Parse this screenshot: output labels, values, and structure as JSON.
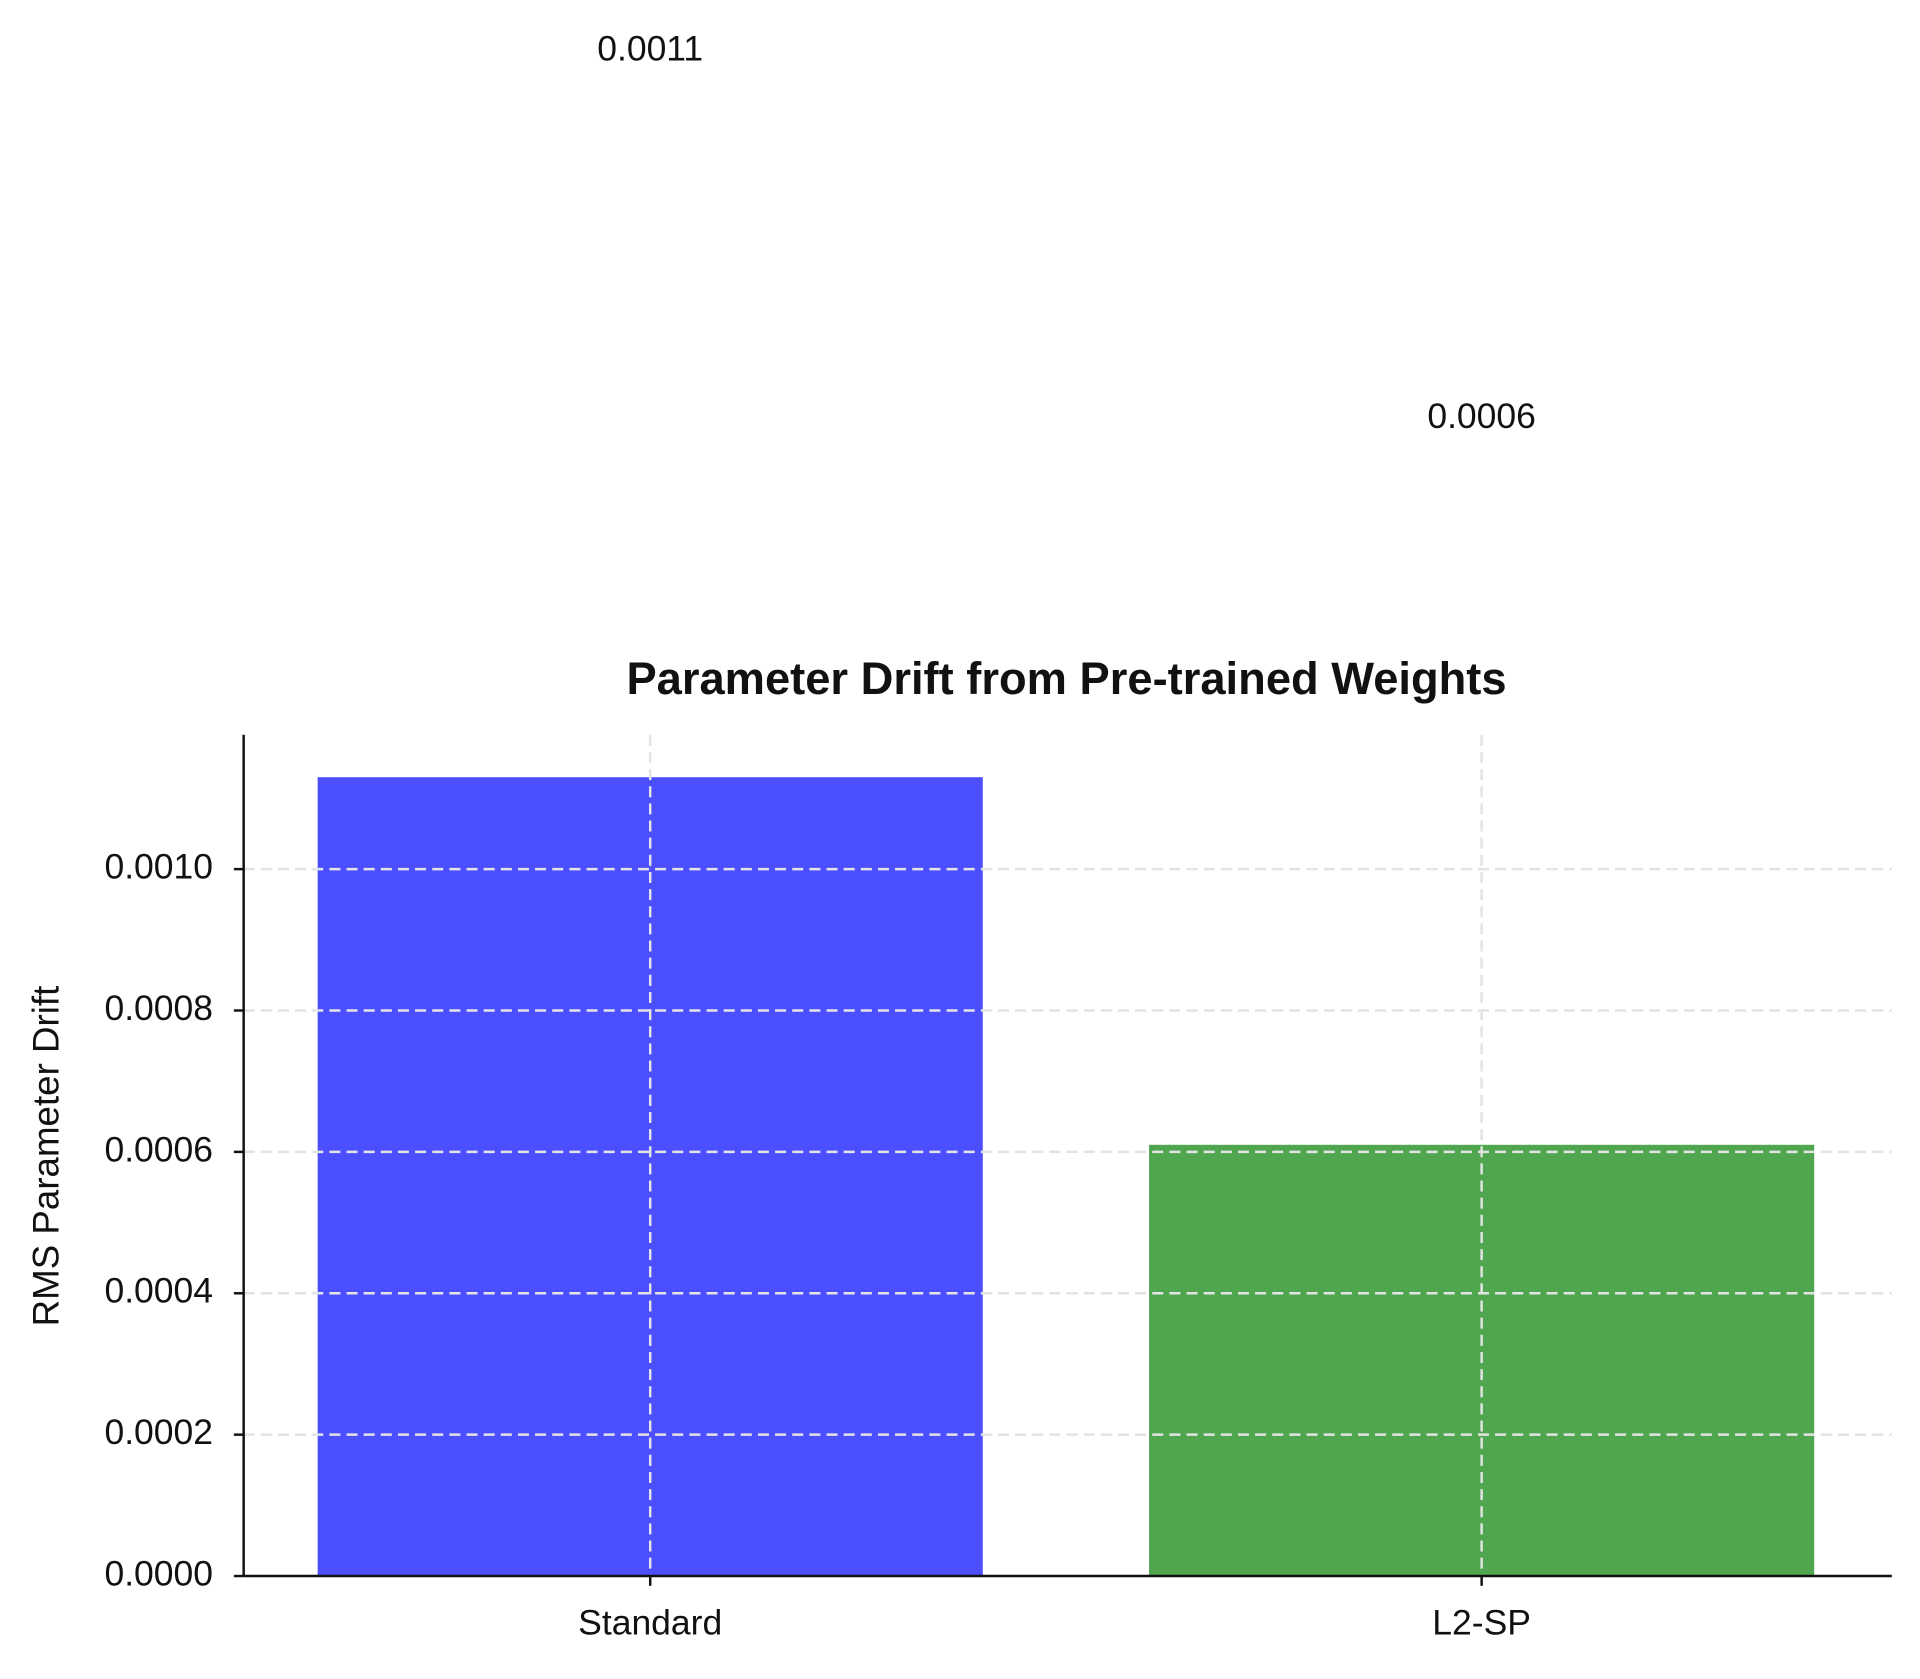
{
  "chart_data": {
    "type": "bar",
    "title": "Parameter Drift from Pre-trained Weights",
    "y_label": "RMS Parameter Drift",
    "categories": [
      "Standard",
      "L2-SP"
    ],
    "values": [
      0.00113,
      0.00061
    ],
    "value_labels": [
      "0.0011",
      "0.0006"
    ],
    "colors": [
      "#4b4fff",
      "#4fa64f"
    ],
    "ylim": [
      0,
      0.00119
    ],
    "yticks": [
      {
        "value": 0,
        "label": "0.0000"
      },
      {
        "value": 0.0002,
        "label": "0.0002"
      },
      {
        "value": 0.0004,
        "label": "0.0004"
      },
      {
        "value": 0.0006,
        "label": "0.0006"
      },
      {
        "value": 0.0008,
        "label": "0.0008"
      },
      {
        "value": 0.001,
        "label": "0.0010"
      }
    ],
    "grid": true
  }
}
